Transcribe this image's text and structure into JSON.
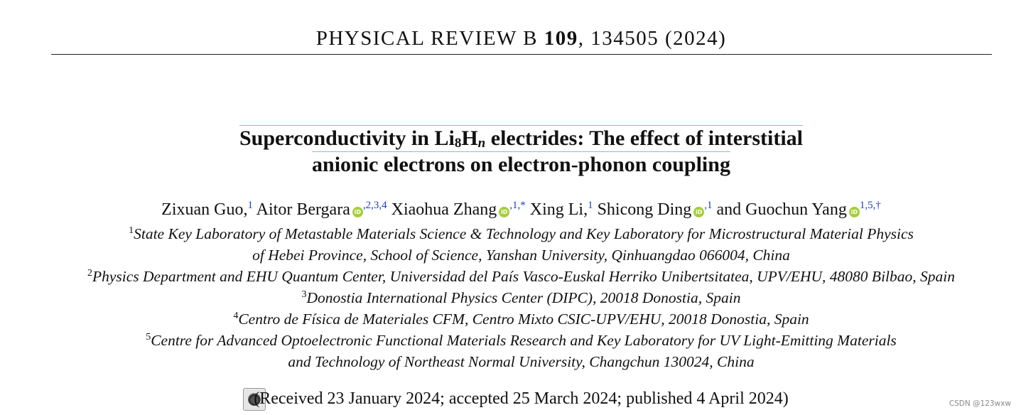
{
  "header": {
    "journal": "PHYSICAL REVIEW B",
    "volume": "109",
    "rest": ", 134505 (2024)"
  },
  "title": {
    "line1_pre": "Superconductivity in Li",
    "line1_sub1": "8",
    "line1_mid": "H",
    "line1_sub2": "n",
    "line1_post": " electrides: The effect of interstitial",
    "line2": "anionic electrons on electron-phonon coupling"
  },
  "authors": [
    {
      "name": "Zixuan Guo,",
      "orcid": false,
      "aff": "1"
    },
    {
      "name": "Aitor Bergara",
      "orcid": true,
      "aff": ",2,3,4"
    },
    {
      "name": "Xiaohua Zhang",
      "orcid": true,
      "aff": ",1,*"
    },
    {
      "name": "Xing Li,",
      "orcid": false,
      "aff": "1"
    },
    {
      "name": "Shicong Ding",
      "orcid": true,
      "aff": ",1"
    },
    {
      "name": "and Guochun Yang",
      "orcid": true,
      "aff": "1,5,†"
    }
  ],
  "affiliations": [
    {
      "num": "1",
      "lines": [
        "State Key Laboratory of Metastable Materials Science & Technology and Key Laboratory for Microstructural Material Physics",
        "of Hebei Province, School of Science, Yanshan University, Qinhuangdao 066004, China"
      ]
    },
    {
      "num": "2",
      "lines": [
        "Physics Department and EHU Quantum Center, Universidad del País Vasco-Euskal Herriko Unibertsitatea, UPV/EHU, 48080 Bilbao, Spain"
      ]
    },
    {
      "num": "3",
      "lines": [
        "Donostia International Physics Center (DIPC), 20018 Donostia, Spain"
      ]
    },
    {
      "num": "4",
      "lines": [
        "Centro de Física de Materiales CFM, Centro Mixto CSIC-UPV/EHU, 20018 Donostia, Spain"
      ]
    },
    {
      "num": "5",
      "lines": [
        "Centre for Advanced Optoelectronic Functional Materials Research and Key Laboratory for UV Light-Emitting Materials",
        "and Technology of Northeast Normal University, Changchun 130024, China"
      ]
    }
  ],
  "received": "(Received 23 January 2024; accepted 25 March 2024; published 4 April 2024)",
  "orcid_label": "iD",
  "watermark": "CSDN @123wxw",
  "icons": {
    "orcid": "orcid-icon",
    "check_updates": "check-for-updates-icon"
  }
}
